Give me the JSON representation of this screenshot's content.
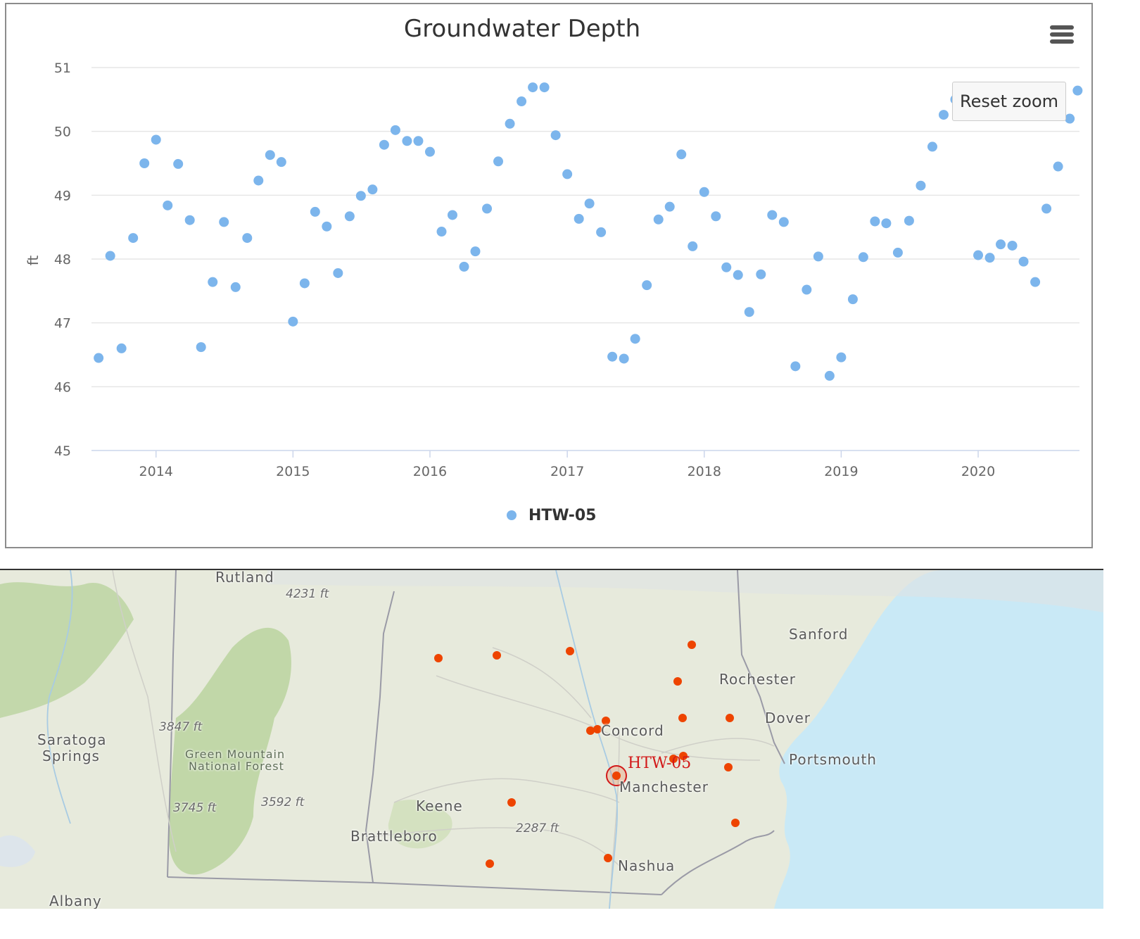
{
  "chart_data": {
    "type": "scatter",
    "title": "Groundwater Depth",
    "ylabel": "ft",
    "xlabel": "",
    "ylim": [
      45,
      51
    ],
    "xlim": [
      "2013-07-13",
      "2020-09-27"
    ],
    "x_ticks": [
      "2014",
      "2015",
      "2016",
      "2017",
      "2018",
      "2019",
      "2020"
    ],
    "y_ticks": [
      45,
      46,
      47,
      48,
      49,
      50,
      51
    ],
    "grid": true,
    "legend_position": "bottom-center",
    "series": [
      {
        "name": "HTW-05",
        "color": "#7cb5ec",
        "points": [
          [
            "2013-08-01",
            46.45
          ],
          [
            "2013-09-01",
            48.05
          ],
          [
            "2013-10-01",
            46.6
          ],
          [
            "2013-11-01",
            48.33
          ],
          [
            "2013-12-01",
            49.5
          ],
          [
            "2014-01-01",
            49.87
          ],
          [
            "2014-02-01",
            48.84
          ],
          [
            "2014-03-01",
            49.49
          ],
          [
            "2014-04-01",
            48.61
          ],
          [
            "2014-05-01",
            46.62
          ],
          [
            "2014-06-01",
            47.64
          ],
          [
            "2014-07-01",
            48.58
          ],
          [
            "2014-08-01",
            47.56
          ],
          [
            "2014-09-01",
            48.33
          ],
          [
            "2014-10-01",
            49.23
          ],
          [
            "2014-11-01",
            49.63
          ],
          [
            "2014-12-01",
            49.52
          ],
          [
            "2015-01-01",
            47.02
          ],
          [
            "2015-02-01",
            47.62
          ],
          [
            "2015-03-01",
            48.74
          ],
          [
            "2015-04-01",
            48.51
          ],
          [
            "2015-05-01",
            47.78
          ],
          [
            "2015-06-01",
            48.67
          ],
          [
            "2015-07-01",
            48.99
          ],
          [
            "2015-08-01",
            49.09
          ],
          [
            "2015-09-01",
            49.79
          ],
          [
            "2015-10-01",
            50.02
          ],
          [
            "2015-11-01",
            49.85
          ],
          [
            "2015-12-01",
            49.85
          ],
          [
            "2016-01-01",
            49.68
          ],
          [
            "2016-02-01",
            48.43
          ],
          [
            "2016-03-01",
            48.69
          ],
          [
            "2016-04-01",
            47.88
          ],
          [
            "2016-05-01",
            48.12
          ],
          [
            "2016-06-01",
            48.79
          ],
          [
            "2016-07-01",
            49.53
          ],
          [
            "2016-08-01",
            50.12
          ],
          [
            "2016-09-01",
            50.47
          ],
          [
            "2016-10-01",
            50.69
          ],
          [
            "2016-11-01",
            50.69
          ],
          [
            "2016-12-01",
            49.94
          ],
          [
            "2017-01-01",
            49.33
          ],
          [
            "2017-02-01",
            48.63
          ],
          [
            "2017-03-01",
            48.87
          ],
          [
            "2017-04-01",
            48.42
          ],
          [
            "2017-05-01",
            46.47
          ],
          [
            "2017-06-01",
            46.44
          ],
          [
            "2017-07-01",
            46.75
          ],
          [
            "2017-08-01",
            47.59
          ],
          [
            "2017-09-01",
            48.62
          ],
          [
            "2017-10-01",
            48.82
          ],
          [
            "2017-11-01",
            49.64
          ],
          [
            "2017-12-01",
            48.2
          ],
          [
            "2018-01-01",
            49.05
          ],
          [
            "2018-02-01",
            48.67
          ],
          [
            "2018-03-01",
            47.87
          ],
          [
            "2018-04-01",
            47.75
          ],
          [
            "2018-05-01",
            47.17
          ],
          [
            "2018-06-01",
            47.76
          ],
          [
            "2018-07-01",
            48.69
          ],
          [
            "2018-08-01",
            48.58
          ],
          [
            "2018-09-01",
            46.32
          ],
          [
            "2018-10-01",
            47.52
          ],
          [
            "2018-11-01",
            48.04
          ],
          [
            "2018-12-01",
            46.17
          ],
          [
            "2019-01-01",
            46.46
          ],
          [
            "2019-02-01",
            47.37
          ],
          [
            "2019-03-01",
            48.03
          ],
          [
            "2019-04-01",
            48.59
          ],
          [
            "2019-05-01",
            48.56
          ],
          [
            "2019-06-01",
            48.1
          ],
          [
            "2019-07-01",
            48.6
          ],
          [
            "2019-08-01",
            49.15
          ],
          [
            "2019-09-01",
            49.76
          ],
          [
            "2019-10-01",
            50.26
          ],
          [
            "2019-11-01",
            50.5
          ],
          [
            "2020-01-01",
            48.06
          ],
          [
            "2020-02-01",
            48.02
          ],
          [
            "2020-03-01",
            48.23
          ],
          [
            "2020-04-01",
            48.21
          ],
          [
            "2020-05-01",
            47.96
          ],
          [
            "2020-06-01",
            47.64
          ],
          [
            "2020-07-01",
            48.79
          ],
          [
            "2020-08-01",
            49.45
          ],
          [
            "2020-09-01",
            50.2
          ],
          [
            "2020-09-22",
            50.64
          ]
        ]
      }
    ]
  },
  "ui": {
    "reset_zoom_label": "Reset zoom",
    "menu_icon": "hamburger-menu-icon"
  },
  "map": {
    "selected_station": "HTW-05",
    "marker_color": "#ee4400",
    "labels": {
      "rutland": "Rutland",
      "sanford": "Sanford",
      "rochester": "Rochester",
      "dover": "Dover",
      "concord": "Concord",
      "portsmouth": "Portsmouth",
      "manchester": "Manchester",
      "keene": "Keene",
      "brattleboro": "Brattleboro",
      "nashua": "Nashua",
      "saratoga": "Saratoga",
      "springs": "Springs",
      "albany": "Albany",
      "forest_1": "Green Mountain",
      "forest_2": "National Forest",
      "elev_4231": "4231 ft",
      "elev_3847": "3847 ft",
      "elev_3745": "3745 ft",
      "elev_3592": "3592 ft",
      "elev_2287": "2287 ft"
    }
  }
}
